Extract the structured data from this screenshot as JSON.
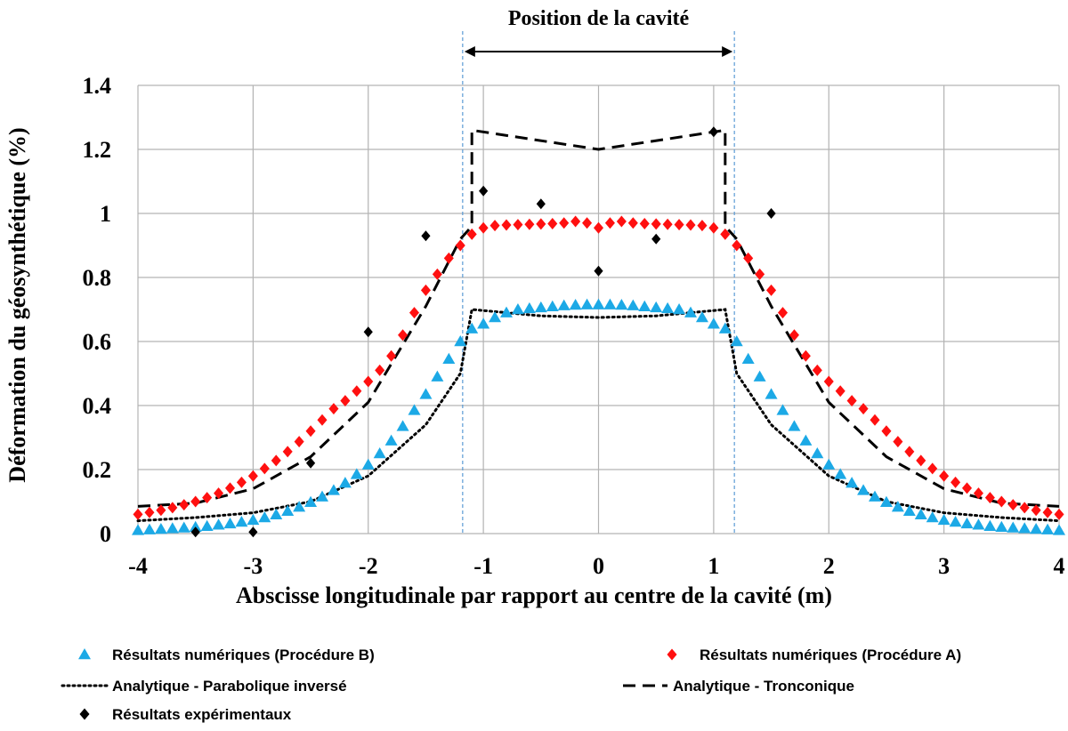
{
  "chart_data": {
    "type": "scatter",
    "annotation": "Position de la cavité",
    "cavity_bounds": [
      -1.18,
      1.18
    ],
    "xlabel": "Abscisse longitudinale par rapport au centre de la cavité (m)",
    "ylabel": "Déformation du géosynthétique (%)",
    "xlim": [
      -4,
      4
    ],
    "ylim": [
      0,
      1.4
    ],
    "xticks": [
      -4,
      -3,
      -2,
      -1,
      0,
      1,
      2,
      3,
      4
    ],
    "yticks": [
      0,
      0.2,
      0.4,
      0.6,
      0.8,
      1,
      1.2,
      1.4
    ],
    "grid": true,
    "legend_position": "bottom",
    "series": [
      {
        "name": "Résultats numériques (Procédure B)",
        "marker": "triangle",
        "color": "#1CA9E6",
        "x": [
          -4,
          -3.9,
          -3.8,
          -3.7,
          -3.6,
          -3.5,
          -3.4,
          -3.3,
          -3.2,
          -3.1,
          -3,
          -2.9,
          -2.8,
          -2.7,
          -2.6,
          -2.5,
          -2.4,
          -2.3,
          -2.2,
          -2.1,
          -2,
          -1.9,
          -1.8,
          -1.7,
          -1.6,
          -1.5,
          -1.4,
          -1.3,
          -1.2,
          -1.1,
          -1,
          -0.9,
          -0.8,
          -0.7,
          -0.6,
          -0.5,
          -0.4,
          -0.3,
          -0.2,
          -0.1,
          0,
          0.1,
          0.2,
          0.3,
          0.4,
          0.5,
          0.6,
          0.7,
          0.8,
          0.9,
          1,
          1.1,
          1.2,
          1.3,
          1.4,
          1.5,
          1.6,
          1.7,
          1.8,
          1.9,
          2,
          2.1,
          2.2,
          2.3,
          2.4,
          2.5,
          2.6,
          2.7,
          2.8,
          2.9,
          3,
          3.1,
          3.2,
          3.3,
          3.4,
          3.5,
          3.6,
          3.7,
          3.8,
          3.9,
          4
        ],
        "y": [
          0.01,
          0.012,
          0.014,
          0.016,
          0.018,
          0.02,
          0.023,
          0.027,
          0.031,
          0.036,
          0.042,
          0.05,
          0.059,
          0.07,
          0.083,
          0.098,
          0.115,
          0.135,
          0.158,
          0.185,
          0.215,
          0.25,
          0.29,
          0.335,
          0.385,
          0.435,
          0.49,
          0.545,
          0.6,
          0.64,
          0.655,
          0.675,
          0.69,
          0.7,
          0.703,
          0.706,
          0.709,
          0.712,
          0.714,
          0.715,
          0.715,
          0.715,
          0.714,
          0.712,
          0.709,
          0.706,
          0.703,
          0.7,
          0.69,
          0.675,
          0.655,
          0.64,
          0.6,
          0.545,
          0.49,
          0.435,
          0.385,
          0.335,
          0.29,
          0.25,
          0.215,
          0.185,
          0.158,
          0.135,
          0.115,
          0.098,
          0.083,
          0.07,
          0.059,
          0.05,
          0.042,
          0.036,
          0.031,
          0.027,
          0.023,
          0.02,
          0.018,
          0.016,
          0.014,
          0.012,
          0.01
        ]
      },
      {
        "name": "Résultats numériques (Procédure A)",
        "marker": "diamond",
        "color": "#FF1010",
        "x": [
          -4,
          -3.9,
          -3.8,
          -3.7,
          -3.6,
          -3.5,
          -3.4,
          -3.3,
          -3.2,
          -3.1,
          -3,
          -2.9,
          -2.8,
          -2.7,
          -2.6,
          -2.5,
          -2.4,
          -2.3,
          -2.2,
          -2.1,
          -2,
          -1.9,
          -1.8,
          -1.7,
          -1.6,
          -1.5,
          -1.4,
          -1.3,
          -1.2,
          -1.1,
          -1,
          -0.9,
          -0.8,
          -0.7,
          -0.6,
          -0.5,
          -0.4,
          -0.3,
          -0.2,
          -0.1,
          0,
          0.1,
          0.2,
          0.3,
          0.4,
          0.5,
          0.6,
          0.7,
          0.8,
          0.9,
          1,
          1.1,
          1.2,
          1.3,
          1.4,
          1.5,
          1.6,
          1.7,
          1.8,
          1.9,
          2,
          2.1,
          2.2,
          2.3,
          2.4,
          2.5,
          2.6,
          2.7,
          2.8,
          2.9,
          3,
          3.1,
          3.2,
          3.3,
          3.4,
          3.5,
          3.6,
          3.7,
          3.8,
          3.9,
          4
        ],
        "y": [
          0.06,
          0.066,
          0.073,
          0.081,
          0.09,
          0.1,
          0.112,
          0.126,
          0.142,
          0.16,
          0.18,
          0.203,
          0.228,
          0.256,
          0.287,
          0.32,
          0.355,
          0.39,
          0.415,
          0.445,
          0.475,
          0.51,
          0.555,
          0.62,
          0.69,
          0.76,
          0.81,
          0.86,
          0.9,
          0.935,
          0.955,
          0.962,
          0.964,
          0.965,
          0.966,
          0.967,
          0.968,
          0.97,
          0.975,
          0.97,
          0.955,
          0.97,
          0.975,
          0.97,
          0.968,
          0.967,
          0.966,
          0.965,
          0.964,
          0.962,
          0.955,
          0.935,
          0.9,
          0.86,
          0.81,
          0.76,
          0.69,
          0.62,
          0.555,
          0.51,
          0.475,
          0.445,
          0.415,
          0.39,
          0.355,
          0.32,
          0.287,
          0.256,
          0.228,
          0.203,
          0.18,
          0.16,
          0.142,
          0.126,
          0.112,
          0.1,
          0.09,
          0.081,
          0.073,
          0.066,
          0.06
        ]
      },
      {
        "name": "Analytique - Parabolique inversé",
        "line_style": "dotted",
        "color": "#000000",
        "x": [
          -4,
          -3.5,
          -3,
          -2.5,
          -2,
          -1.5,
          -1.2,
          -1.1,
          -0.5,
          0,
          0.5,
          1.1,
          1.2,
          1.5,
          2,
          2.5,
          3,
          3.5,
          4
        ],
        "y": [
          0.04,
          0.05,
          0.065,
          0.1,
          0.18,
          0.34,
          0.5,
          0.7,
          0.68,
          0.675,
          0.68,
          0.7,
          0.5,
          0.34,
          0.18,
          0.1,
          0.065,
          0.05,
          0.04
        ]
      },
      {
        "name": "Analytique - Tronconique",
        "line_style": "dashed",
        "color": "#000000",
        "x": [
          -4,
          -3.5,
          -3,
          -2.5,
          -2,
          -1.5,
          -1.2,
          -1.1,
          -1.1,
          0,
          1.1,
          1.1,
          1.2,
          1.5,
          2,
          2.5,
          3,
          3.5,
          4
        ],
        "y": [
          0.085,
          0.095,
          0.14,
          0.24,
          0.41,
          0.71,
          0.92,
          0.96,
          1.26,
          1.2,
          1.26,
          0.96,
          0.92,
          0.71,
          0.41,
          0.24,
          0.14,
          0.095,
          0.085
        ]
      },
      {
        "name": "Résultats expérimentaux",
        "marker": "diamond",
        "color": "#000000",
        "x": [
          -3.5,
          -3,
          -2.5,
          -2,
          -1.5,
          -1,
          -0.5,
          0,
          0.5,
          1,
          1.5
        ],
        "y": [
          0.005,
          0.005,
          0.22,
          0.63,
          0.93,
          1.07,
          1.03,
          0.82,
          0.92,
          1.255,
          1.0
        ]
      }
    ]
  }
}
